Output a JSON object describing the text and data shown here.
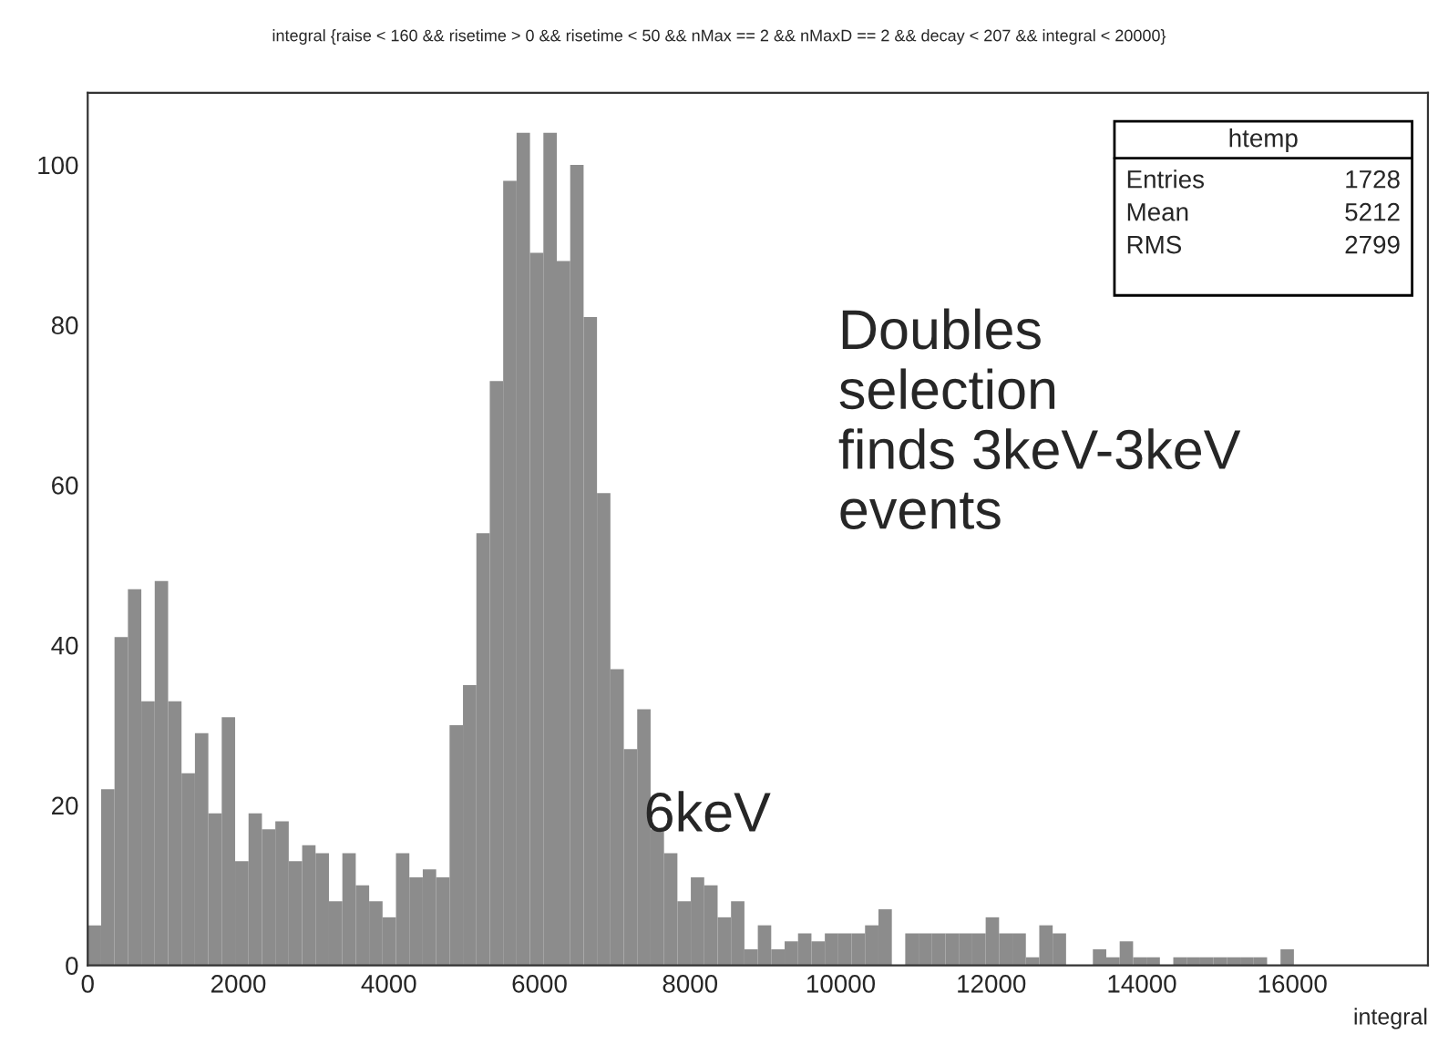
{
  "chart_data": {
    "type": "histogram",
    "title": "integral {raise < 160 && risetime > 0 && risetime < 50 && nMax == 2 && nMaxD == 2 && decay < 207 && integral < 20000}",
    "xlabel": "integral",
    "bins": [
      0,
      178,
      356,
      534,
      712,
      890,
      1068,
      1246,
      1424,
      1602,
      1780,
      1958,
      2136,
      2314,
      2492,
      2670,
      2848,
      3026,
      3204,
      3382,
      3560,
      3738,
      3916,
      4094,
      4272,
      4450,
      4628,
      4806,
      4984,
      5162,
      5340,
      5518,
      5696,
      5874,
      6052,
      6230,
      6408,
      6586,
      6764,
      6942,
      7120,
      7298,
      7476,
      7654,
      7832,
      8010,
      8188,
      8366,
      8544,
      8722,
      8900,
      9078,
      9256,
      9434,
      9612,
      9790,
      9968,
      10146,
      10324,
      10502,
      10680,
      10858,
      11036,
      11214,
      11392,
      11570,
      11748,
      11926,
      12104,
      12282,
      12460,
      12638,
      12816,
      12994,
      13172,
      13350,
      13528,
      13706,
      13884,
      14062,
      14240,
      14418,
      14596,
      14774,
      14952,
      15130,
      15308,
      15486,
      15664,
      15842,
      16020,
      16198,
      16376,
      16554,
      16732,
      16910,
      17088,
      17266,
      17444,
      17622,
      17800
    ],
    "values": [
      5,
      22,
      41,
      47,
      33,
      48,
      33,
      24,
      29,
      19,
      31,
      13,
      19,
      17,
      18,
      13,
      15,
      14,
      8,
      14,
      10,
      8,
      6,
      14,
      11,
      12,
      11,
      30,
      35,
      54,
      73,
      98,
      104,
      89,
      104,
      88,
      100,
      81,
      59,
      37,
      27,
      32,
      17,
      14,
      8,
      11,
      10,
      6,
      8,
      2,
      5,
      2,
      3,
      4,
      3,
      4,
      4,
      4,
      5,
      7,
      0,
      4,
      4,
      4,
      4,
      4,
      4,
      6,
      4,
      4,
      1,
      5,
      4,
      0,
      0,
      2,
      1,
      3,
      1,
      1,
      0,
      1,
      1,
      1,
      1,
      1,
      1,
      1,
      0,
      2,
      0,
      0,
      0,
      0,
      0,
      0,
      0,
      0,
      0,
      0
    ],
    "color": "#8c8c8c",
    "xlim": [
      0,
      17800
    ],
    "ylim": [
      0,
      109
    ],
    "xticks": [
      0,
      2000,
      4000,
      6000,
      8000,
      10000,
      12000,
      14000,
      16000
    ],
    "yticks": [
      0,
      20,
      40,
      60,
      80,
      100
    ],
    "grid": false,
    "legend": false,
    "annotations": [
      "htemp",
      "Entries",
      "1728",
      "Mean",
      "5212",
      "RMS",
      "2799",
      "Doubles\nselection\nfinds 3keV-3keV\nevents",
      "6keV"
    ]
  }
}
